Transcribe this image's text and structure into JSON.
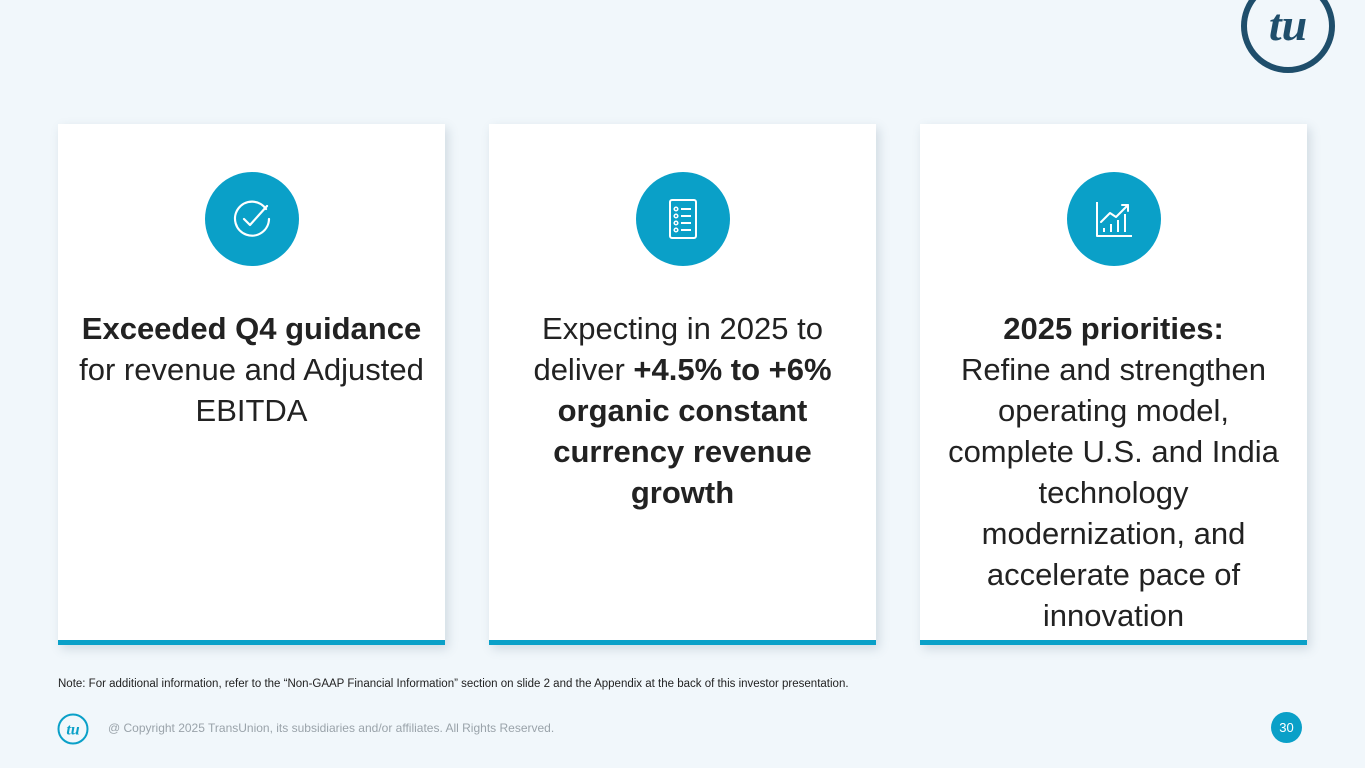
{
  "brand": {
    "logo_text": "tu",
    "colors": {
      "accent": "#0aa0c8",
      "logo_navy": "#1f4e6b",
      "background": "#f1f7fb"
    }
  },
  "cards": [
    {
      "icon": "checkmark-circle-icon",
      "bold1": "Exceeded Q4 guidance",
      "text1": " for revenue and Adjusted EBITDA"
    },
    {
      "icon": "checklist-document-icon",
      "text1": "Expecting in 2025 to deliver ",
      "bold1": "+4.5% to +6% organic constant currency revenue growth"
    },
    {
      "icon": "chart-trend-up-icon",
      "bold1": "2025 priorities:",
      "text1": "Refine and strengthen operating model, complete U.S. and India technology modernization, and accelerate pace of innovation"
    }
  ],
  "note": "Note: For additional information, refer to the “Non-GAAP Financial Information” section on slide 2 and the Appendix at the back of this investor presentation.",
  "footer": {
    "copyright": "@ Copyright 2025 TransUnion, its subsidiaries and/or affiliates.  All Rights Reserved.",
    "page_number": "30"
  }
}
